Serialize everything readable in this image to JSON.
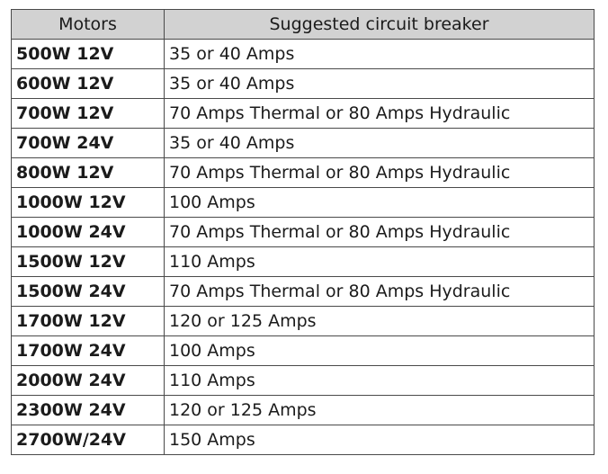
{
  "table": {
    "headers": [
      "Motors",
      "Suggested circuit breaker"
    ],
    "rows": [
      [
        "500W 12V",
        "35 or 40 Amps"
      ],
      [
        "600W 12V",
        "35 or 40 Amps"
      ],
      [
        "700W 12V",
        "70 Amps Thermal or 80 Amps Hydraulic"
      ],
      [
        "700W 24V",
        "35 or 40 Amps"
      ],
      [
        "800W 12V",
        "70 Amps Thermal or 80 Amps Hydraulic"
      ],
      [
        "1000W 12V",
        "100 Amps"
      ],
      [
        "1000W 24V",
        "70 Amps Thermal or 80 Amps Hydraulic"
      ],
      [
        "1500W 12V",
        "110 Amps"
      ],
      [
        "1500W 24V",
        "70 Amps Thermal or 80 Amps Hydraulic"
      ],
      [
        "1700W 12V",
        "120 or 125 Amps"
      ],
      [
        "1700W 24V",
        "100 Amps"
      ],
      [
        "2000W 24V",
        "110 Amps"
      ],
      [
        "2300W 24V",
        "120 or 125 Amps"
      ],
      [
        "2700W/24V",
        "150 Amps"
      ]
    ]
  },
  "colors": {
    "header_bg": "#d2d2d2",
    "border": "#4a4a4a",
    "text": "#1b1b1b"
  }
}
